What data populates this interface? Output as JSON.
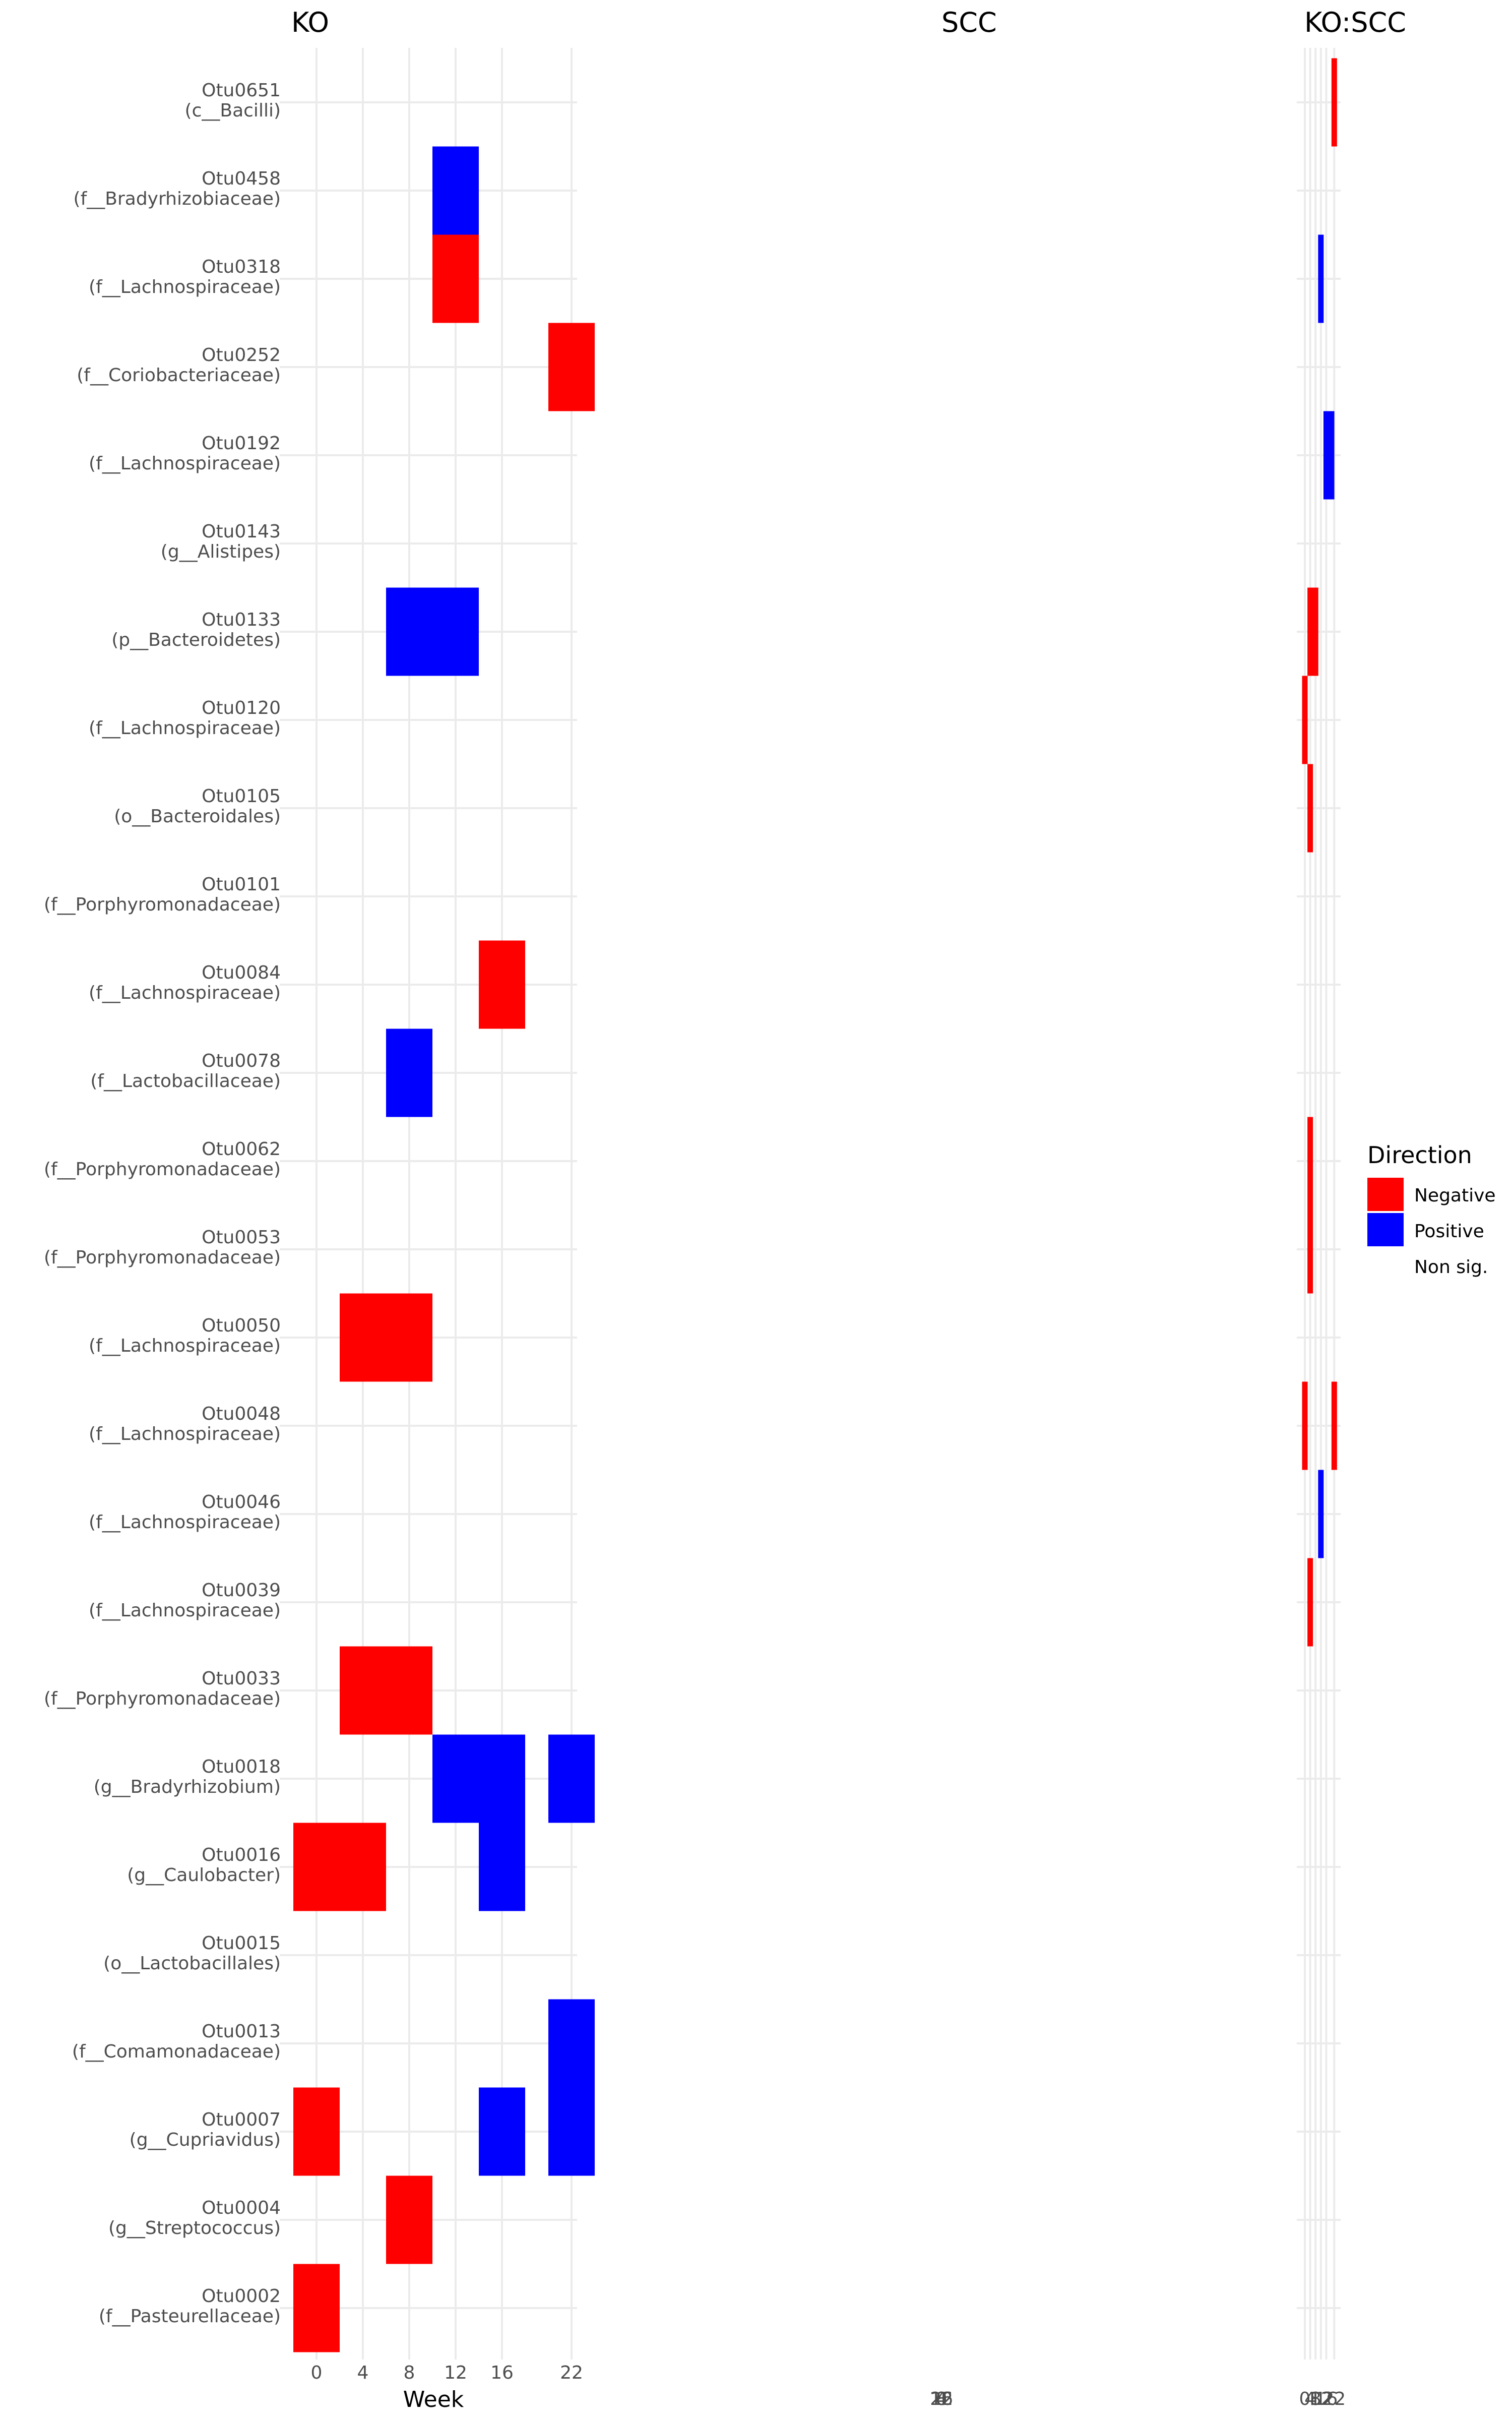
{
  "chart_data": {
    "type": "heatmap",
    "panels": [
      "KO",
      "SCC",
      "KO:SCC"
    ],
    "xlabel": "Week",
    "x_ticks": [
      0,
      4,
      8,
      12,
      16,
      22
    ],
    "weeks": [
      0,
      4,
      8,
      12,
      16,
      20,
      22
    ],
    "rows": [
      {
        "otu": "Otu0651",
        "taxon": "(c__Bacilli)"
      },
      {
        "otu": "Otu0458",
        "taxon": "(f__Bradyrhizobiaceae)"
      },
      {
        "otu": "Otu0318",
        "taxon": "(f__Lachnospiraceae)"
      },
      {
        "otu": "Otu0252",
        "taxon": "(f__Coriobacteriaceae)"
      },
      {
        "otu": "Otu0192",
        "taxon": "(f__Lachnospiraceae)"
      },
      {
        "otu": "Otu0143",
        "taxon": "(g__Alistipes)"
      },
      {
        "otu": "Otu0133",
        "taxon": "(p__Bacteroidetes)"
      },
      {
        "otu": "Otu0120",
        "taxon": "(f__Lachnospiraceae)"
      },
      {
        "otu": "Otu0105",
        "taxon": "(o__Bacteroidales)"
      },
      {
        "otu": "Otu0101",
        "taxon": "(f__Porphyromonadaceae)"
      },
      {
        "otu": "Otu0084",
        "taxon": "(f__Lachnospiraceae)"
      },
      {
        "otu": "Otu0078",
        "taxon": "(f__Lactobacillaceae)"
      },
      {
        "otu": "Otu0062",
        "taxon": "(f__Porphyromonadaceae)"
      },
      {
        "otu": "Otu0053",
        "taxon": "(f__Porphyromonadaceae)"
      },
      {
        "otu": "Otu0050",
        "taxon": "(f__Lachnospiraceae)"
      },
      {
        "otu": "Otu0048",
        "taxon": "(f__Lachnospiraceae)"
      },
      {
        "otu": "Otu0046",
        "taxon": "(f__Lachnospiraceae)"
      },
      {
        "otu": "Otu0039",
        "taxon": "(f__Lachnospiraceae)"
      },
      {
        "otu": "Otu0033",
        "taxon": "(f__Porphyromonadaceae)"
      },
      {
        "otu": "Otu0018",
        "taxon": "(g__Bradyrhizobium)"
      },
      {
        "otu": "Otu0016",
        "taxon": "(g__Caulobacter)"
      },
      {
        "otu": "Otu0015",
        "taxon": "(o__Lactobacillales)"
      },
      {
        "otu": "Otu0013",
        "taxon": "(f__Comamonadaceae)"
      },
      {
        "otu": "Otu0007",
        "taxon": "(g__Cupriavidus)"
      },
      {
        "otu": "Otu0004",
        "taxon": "(g__Streptococcus)"
      },
      {
        "otu": "Otu0002",
        "taxon": "(f__Pasteurellaceae)"
      }
    ],
    "ko_cells": [
      {
        "otu": "Otu0458",
        "week": 12,
        "direction": "Positive"
      },
      {
        "otu": "Otu0318",
        "week": 12,
        "direction": "Negative"
      },
      {
        "otu": "Otu0252",
        "week": 22,
        "direction": "Negative"
      },
      {
        "otu": "Otu0133",
        "week": 8,
        "direction": "Positive"
      },
      {
        "otu": "Otu0133",
        "week": 12,
        "direction": "Positive"
      },
      {
        "otu": "Otu0084",
        "week": 16,
        "direction": "Negative"
      },
      {
        "otu": "Otu0078",
        "week": 8,
        "direction": "Positive"
      },
      {
        "otu": "Otu0050",
        "week": 4,
        "direction": "Negative"
      },
      {
        "otu": "Otu0050",
        "week": 8,
        "direction": "Negative"
      },
      {
        "otu": "Otu0033",
        "week": 4,
        "direction": "Negative"
      },
      {
        "otu": "Otu0033",
        "week": 8,
        "direction": "Negative"
      },
      {
        "otu": "Otu0018",
        "week": 12,
        "direction": "Positive"
      },
      {
        "otu": "Otu0018",
        "week": 16,
        "direction": "Positive"
      },
      {
        "otu": "Otu0018",
        "week": 22,
        "direction": "Positive"
      },
      {
        "otu": "Otu0016",
        "week": 0,
        "direction": "Negative"
      },
      {
        "otu": "Otu0016",
        "week": 4,
        "direction": "Negative"
      },
      {
        "otu": "Otu0016",
        "week": 16,
        "direction": "Positive"
      },
      {
        "otu": "Otu0013",
        "week": 22,
        "direction": "Positive"
      },
      {
        "otu": "Otu0007",
        "week": 0,
        "direction": "Negative"
      },
      {
        "otu": "Otu0007",
        "week": 16,
        "direction": "Positive"
      },
      {
        "otu": "Otu0007",
        "week": 22,
        "direction": "Positive"
      },
      {
        "otu": "Otu0004",
        "week": 8,
        "direction": "Negative"
      },
      {
        "otu": "Otu0002",
        "week": 0,
        "direction": "Negative"
      }
    ],
    "koscc_cells": [
      {
        "otu": "Otu0651",
        "week": 22,
        "direction": "Negative"
      },
      {
        "otu": "Otu0318",
        "week": 12,
        "direction": "Positive"
      },
      {
        "otu": "Otu0192",
        "week": 16,
        "direction": "Positive"
      },
      {
        "otu": "Otu0192",
        "week": 20,
        "direction": "Positive"
      },
      {
        "otu": "Otu0133",
        "week": 4,
        "direction": "Negative"
      },
      {
        "otu": "Otu0133",
        "week": 8,
        "direction": "Negative"
      },
      {
        "otu": "Otu0120",
        "week": 0,
        "direction": "Negative"
      },
      {
        "otu": "Otu0105",
        "week": 4,
        "direction": "Negative"
      },
      {
        "otu": "Otu0062",
        "week": 4,
        "direction": "Negative"
      },
      {
        "otu": "Otu0053",
        "week": 4,
        "direction": "Negative"
      },
      {
        "otu": "Otu0048",
        "week": 0,
        "direction": "Negative"
      },
      {
        "otu": "Otu0048",
        "week": 22,
        "direction": "Negative"
      },
      {
        "otu": "Otu0046",
        "week": 12,
        "direction": "Positive"
      },
      {
        "otu": "Otu0039",
        "week": 4,
        "direction": "Negative"
      }
    ],
    "koscc_tick_labels": [
      "0",
      "4",
      "8",
      "12",
      "16",
      "22"
    ],
    "scc_tick_overlay_labels": [
      "16",
      "8",
      "4",
      "12",
      "0",
      "22"
    ],
    "legend": {
      "title": "Direction",
      "position": "right",
      "entries": [
        {
          "label": "Negative",
          "color": "#ff0000"
        },
        {
          "label": "Positive",
          "color": "#0000ff"
        },
        {
          "label": "Non sig.",
          "color": "#ffffff"
        }
      ]
    },
    "colors": {
      "Negative": "#ff0000",
      "Positive": "#0000ff"
    }
  }
}
